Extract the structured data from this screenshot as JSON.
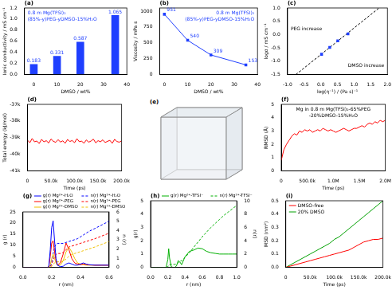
{
  "chart_data": [
    {
      "type": "bar",
      "title": "(a)",
      "annotations": [
        "0.8 m Mg(TFSI)₂",
        "(85%-y)PEG-yDMSO-15%H₂O"
      ],
      "x_label": "DMSO / wt%",
      "y_label": "Ionic conductivity / mS cm⁻¹",
      "x": [
        0,
        10,
        20,
        35
      ],
      "series": [
        {
          "color": "#1f3fff",
          "values": [
            0.183,
            0.331,
            0.587,
            1.065
          ]
        }
      ],
      "xlim": [
        -4,
        40
      ],
      "xticks": [
        0,
        10,
        20,
        30,
        40
      ],
      "ylim": [
        0,
        1.2
      ],
      "yticks": [
        {
          "value": 0,
          "label": "0.0"
        },
        0.2,
        0.4,
        0.6,
        0.8,
        {
          "value": 1,
          "label": "1.0"
        },
        1.2
      ],
      "grid": false,
      "data_labels": true
    },
    {
      "type": "line",
      "title": "(b)",
      "annotations": [
        "0.8 m Mg(TFSI)₂",
        "(85%-y)PEG-yDMSO-15%H₂O"
      ],
      "x_label": "DMSO / wt%",
      "y_label": "Viscosity / mPa s",
      "x": [
        0,
        10,
        20,
        35
      ],
      "series": [
        {
          "color": "#1f3fff",
          "marker": "square",
          "line_style": "solid",
          "values": [
            951,
            540,
            309,
            153
          ]
        }
      ],
      "xlim": [
        -2,
        40
      ],
      "xticks": [
        0,
        10,
        20,
        30,
        40
      ],
      "ylim": [
        0,
        1050
      ],
      "yticks": [
        0,
        250,
        500,
        750,
        1000
      ],
      "grid": false,
      "data_labels": true
    },
    {
      "type": "scatter",
      "title": "(c)",
      "annotations": [
        "PEG increase",
        "DMSO increase"
      ],
      "x_label": "log(η⁻¹) / (Pa s)⁻¹",
      "y_label": "logσ / mS cm⁻¹",
      "series": [
        {
          "type": "scatter",
          "color": "#1f3fff",
          "marker": "square",
          "x": [
            0.022,
            0.268,
            0.51,
            0.815
          ],
          "values": [
            -0.738,
            -0.48,
            -0.231,
            0.027
          ]
        },
        {
          "type": "line",
          "color": "#000000",
          "line_style": "dashed",
          "x": [
            -0.75,
            1.75
          ],
          "values": [
            -1.5,
            1.0
          ]
        }
      ],
      "xlim": [
        -1,
        2
      ],
      "xticks": [
        {
          "value": -1,
          "label": "-1.0"
        },
        -0.5,
        {
          "value": 0,
          "label": "0.0"
        },
        0.5,
        {
          "value": 1,
          "label": "1.0"
        },
        1.5,
        {
          "value": 2,
          "label": "2.0"
        }
      ],
      "ylim": [
        -1.5,
        1
      ],
      "yticks": [
        -1.5,
        {
          "value": -1,
          "label": "-1.0"
        },
        -0.5,
        {
          "value": 0,
          "label": "0.0"
        },
        0.5,
        {
          "value": 1,
          "label": "1.0"
        }
      ],
      "grid": false
    },
    {
      "type": "line",
      "title": "(d)",
      "x_label": "Time (ps)",
      "y_label": "Total energy (kJ/mol)",
      "x": [
        0,
        5000,
        10000,
        15000,
        20000,
        25000,
        30000,
        35000,
        40000,
        45000,
        50000,
        55000,
        60000,
        65000,
        70000,
        75000,
        80000,
        85000,
        90000,
        95000,
        100000,
        105000,
        110000,
        115000,
        120000,
        125000,
        130000,
        135000,
        140000,
        145000,
        150000,
        155000,
        160000,
        165000,
        170000,
        175000,
        180000,
        185000,
        190000,
        195000,
        200000
      ],
      "series": [
        {
          "color": "#ff0000",
          "line_style": "solid",
          "values": [
            -39150,
            -39300,
            -39050,
            -39250,
            -39200,
            -39350,
            -39100,
            -39250,
            -39180,
            -39320,
            -39080,
            -39220,
            -39280,
            -39120,
            -39260,
            -39190,
            -39340,
            -39110,
            -39230,
            -39170,
            -39300,
            -39060,
            -39240,
            -39210,
            -39330,
            -39140,
            -39270,
            -39200,
            -39090,
            -39310,
            -39180,
            -39250,
            -39130,
            -39290,
            -39220,
            -39160,
            -39340,
            -39100,
            -39230,
            -39270,
            -39190
          ]
        }
      ],
      "xlim": [
        0,
        200000
      ],
      "xticks": [
        0,
        {
          "value": 50000,
          "label": "50.0k"
        },
        {
          "value": 100000,
          "label": "100.0k"
        },
        {
          "value": 150000,
          "label": "150.0k"
        },
        {
          "value": 200000,
          "label": "200.0k"
        }
      ],
      "ylim": [
        -41000,
        -37000
      ],
      "yticks": [
        {
          "value": -41000,
          "label": "-41k"
        },
        {
          "value": -40000,
          "label": "-40k"
        },
        {
          "value": -39000,
          "label": "-39k"
        },
        {
          "value": -38000,
          "label": "-38k"
        },
        {
          "value": -37000,
          "label": "-37k"
        }
      ],
      "grid": false
    },
    {
      "type": "image",
      "title": "(e)"
    },
    {
      "type": "line",
      "title": "(f)",
      "annotations": [
        "Mg in 0.8 m Mg(TFSI)₂-65%PEG",
        "-20%DMSO-15%H₂O"
      ],
      "x_label": "Time (ps)",
      "y_label": "RMSD (Å)",
      "x": [
        0,
        50000,
        100000,
        150000,
        200000,
        250000,
        300000,
        350000,
        400000,
        450000,
        500000,
        550000,
        600000,
        650000,
        700000,
        750000,
        800000,
        850000,
        900000,
        950000,
        1000000,
        1050000,
        1100000,
        1150000,
        1200000,
        1250000,
        1300000,
        1350000,
        1400000,
        1450000,
        1500000,
        1550000,
        1600000,
        1650000,
        1700000,
        1750000,
        1800000,
        1850000,
        1900000,
        1950000,
        2000000
      ],
      "series": [
        {
          "color": "#ff0000",
          "line_style": "solid",
          "values": [
            0.8,
            1.6,
            2.0,
            2.3,
            2.6,
            2.8,
            2.7,
            3.0,
            2.9,
            3.1,
            3.0,
            3.1,
            2.9,
            3.0,
            3.1,
            3.0,
            3.2,
            3.1,
            3.0,
            3.1,
            3.0,
            2.9,
            3.0,
            3.1,
            3.2,
            3.1,
            3.0,
            3.1,
            3.2,
            3.2,
            3.3,
            3.4,
            3.3,
            3.5,
            3.6,
            3.5,
            3.7,
            3.6,
            3.8,
            3.7,
            3.8
          ]
        }
      ],
      "xlim": [
        0,
        2000000
      ],
      "xticks": [
        0,
        {
          "value": 500000,
          "label": "500.0k"
        },
        {
          "value": 1000000,
          "label": "1.0M"
        },
        {
          "value": 1500000,
          "label": "1.5M"
        },
        {
          "value": 2000000,
          "label": "2.0M"
        }
      ],
      "ylim": [
        0,
        5
      ],
      "yticks": [
        0,
        1,
        2,
        3,
        4,
        5
      ],
      "grid": false
    },
    {
      "type": "line",
      "title": "(g)",
      "x_label": "r (nm)",
      "y_label": "g (r)",
      "y2_label": "n (r)",
      "x": [
        0,
        0.17,
        0.18,
        0.19,
        0.2,
        0.21,
        0.22,
        0.23,
        0.24,
        0.26,
        0.28,
        0.3,
        0.32,
        0.34,
        0.36,
        0.38,
        0.4,
        0.42,
        0.44,
        0.46,
        0.5,
        0.55,
        0.6
      ],
      "series": [
        {
          "name": "g(r) Mg²⁺-H₂O",
          "color": "#0000ff",
          "line_style": "solid",
          "values": [
            0,
            0,
            0.5,
            8,
            18,
            21,
            12,
            4,
            1,
            0.3,
            0.5,
            1.5,
            2,
            1.5,
            1,
            1,
            1.5,
            2,
            1.5,
            1.2,
            1,
            1,
            1
          ]
        },
        {
          "name": "g(r) Mg²⁺-PEG",
          "color": "#ff0000",
          "line_style": "solid",
          "values": [
            0,
            0,
            0.3,
            5,
            11,
            12,
            7,
            3,
            1,
            2,
            6,
            11,
            8,
            4,
            2,
            1.5,
            1.2,
            1.5,
            1.3,
            1.1,
            1,
            1,
            1
          ]
        },
        {
          "name": "g(r) Mg²⁺-DMSO",
          "color": "#f0c000",
          "line_style": "solid",
          "values": [
            0,
            0,
            0,
            1,
            4,
            6,
            4,
            2,
            1,
            1,
            3,
            7,
            9,
            7,
            4,
            2,
            1.5,
            1.2,
            1,
            1,
            1,
            1,
            1
          ]
        },
        {
          "name": "n(r) Mg²⁺-H₂O",
          "color": "#0000ff",
          "line_style": "dashed",
          "axis": "y2",
          "values": [
            0,
            0,
            0,
            0.1,
            0.6,
            1.5,
            2.2,
            2.5,
            2.6,
            2.6,
            2.6,
            2.7,
            2.8,
            2.9,
            3.0,
            3.1,
            3.3,
            3.5,
            3.7,
            3.9,
            4.2,
            4.6,
            5.0
          ]
        },
        {
          "name": "n(r) Mg²⁺-PEG",
          "color": "#ff0000",
          "line_style": "dashed",
          "axis": "y2",
          "values": [
            0,
            0,
            0,
            0.05,
            0.3,
            0.8,
            1.2,
            1.4,
            1.5,
            1.5,
            1.6,
            1.9,
            2.2,
            2.3,
            2.4,
            2.5,
            2.6,
            2.7,
            2.8,
            2.9,
            3.1,
            3.4,
            3.7
          ]
        },
        {
          "name": "n(r) Mg²⁺-DMSO",
          "color": "#f0c000",
          "line_style": "dashed",
          "axis": "y2",
          "values": [
            0,
            0,
            0,
            0,
            0.1,
            0.3,
            0.5,
            0.6,
            0.6,
            0.6,
            0.7,
            0.9,
            1.2,
            1.4,
            1.5,
            1.6,
            1.7,
            1.8,
            1.9,
            2.0,
            2.2,
            2.5,
            2.8
          ]
        }
      ],
      "xlim": [
        0,
        0.6
      ],
      "xticks": [
        {
          "value": 0,
          "label": "0.0"
        },
        0.2,
        0.4,
        0.6
      ],
      "ylim": [
        0,
        25
      ],
      "yticks": [
        0,
        5,
        10,
        15,
        20,
        25
      ],
      "y2lim": [
        0,
        6
      ],
      "y2ticks": [
        0,
        1,
        2,
        3,
        4,
        5,
        6
      ],
      "grid": false,
      "legend": "top"
    },
    {
      "type": "line",
      "title": "(h)",
      "x_label": "r (nm)",
      "y_label": "g(r)",
      "y2_label": "n(r)",
      "x": [
        0,
        0.18,
        0.2,
        0.21,
        0.22,
        0.24,
        0.26,
        0.28,
        0.3,
        0.32,
        0.34,
        0.36,
        0.4,
        0.45,
        0.5,
        0.55,
        0.6,
        0.65,
        0.7,
        0.75,
        0.8,
        0.85,
        0.9,
        0.95,
        1
      ],
      "series": [
        {
          "name": "g(r) Mg²⁺-TFSI⁻",
          "color": "#00b000",
          "line_style": "solid",
          "values": [
            0,
            0,
            0.6,
            1.4,
            0.7,
            0.05,
            0,
            0,
            0.1,
            0.5,
            0.4,
            0.2,
            0.8,
            1.2,
            1.3,
            1.45,
            1.4,
            1.2,
            1.1,
            1.05,
            1,
            1,
            1,
            1,
            1
          ]
        },
        {
          "name": "n(r) Mg²⁺-TFSI⁻",
          "color": "#00b000",
          "line_style": "dashed",
          "axis": "y2",
          "values": [
            0,
            0,
            0.1,
            0.3,
            0.4,
            0.45,
            0.45,
            0.45,
            0.5,
            0.7,
            0.9,
            1,
            1.5,
            2.2,
            3,
            3.8,
            4.6,
            5.3,
            6,
            6.6,
            7.2,
            7.8,
            8.3,
            8.8,
            9.3
          ]
        }
      ],
      "xlim": [
        0,
        1
      ],
      "xticks": [
        {
          "value": 0,
          "label": "0.0"
        },
        0.2,
        0.4,
        0.6,
        0.8,
        {
          "value": 1,
          "label": "1.0"
        }
      ],
      "ylim": [
        0,
        5
      ],
      "yticks": [
        0,
        1,
        2,
        3,
        4,
        5
      ],
      "y2lim": [
        0,
        10
      ],
      "y2ticks": [
        0,
        2,
        4,
        6,
        8,
        10
      ],
      "grid": false,
      "legend": "top"
    },
    {
      "type": "line",
      "title": "(i)",
      "x_label": "Time (ps)",
      "y_label": "MSD (nm²)",
      "x": [
        0,
        10000,
        20000,
        30000,
        40000,
        50000,
        60000,
        70000,
        80000,
        90000,
        100000,
        110000,
        120000,
        130000,
        140000,
        150000,
        160000,
        170000,
        180000,
        190000,
        200000
      ],
      "series": [
        {
          "name": "DMSO-free",
          "color": "#ff0000",
          "line_style": "solid",
          "values": [
            0,
            0.01,
            0.02,
            0.03,
            0.04,
            0.05,
            0.06,
            0.07,
            0.08,
            0.09,
            0.1,
            0.11,
            0.12,
            0.13,
            0.15,
            0.17,
            0.19,
            0.2,
            0.21,
            0.21,
            0.22
          ]
        },
        {
          "name": "20% DMSO",
          "color": "#00a000",
          "line_style": "solid",
          "values": [
            0,
            0.02,
            0.04,
            0.06,
            0.08,
            0.1,
            0.12,
            0.14,
            0.16,
            0.18,
            0.21,
            0.23,
            0.26,
            0.29,
            0.32,
            0.35,
            0.38,
            0.41,
            0.44,
            0.47,
            0.5
          ]
        }
      ],
      "xlim": [
        0,
        200000
      ],
      "xticks": [
        0,
        {
          "value": 50000,
          "label": "50.0k"
        },
        {
          "value": 100000,
          "label": "100.0k"
        },
        {
          "value": 150000,
          "label": "150.0k"
        },
        {
          "value": 200000,
          "label": "200.0k"
        }
      ],
      "ylim": [
        0,
        0.5
      ],
      "yticks": [
        {
          "value": 0,
          "label": "0.0"
        },
        0.1,
        0.2,
        0.3,
        0.4,
        0.5
      ],
      "grid": false,
      "legend": "upper left"
    }
  ]
}
